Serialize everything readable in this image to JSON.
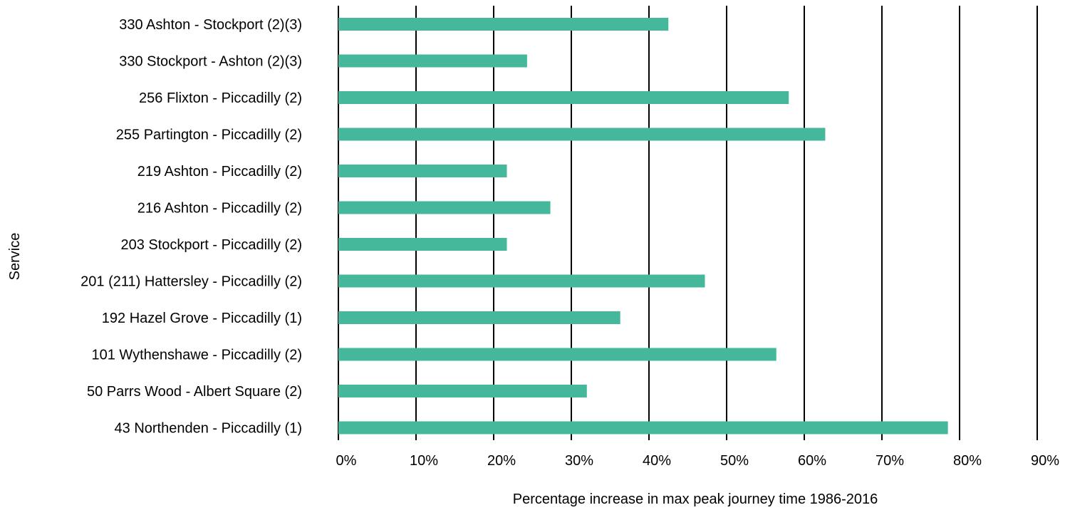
{
  "chart_data": {
    "type": "bar",
    "orientation": "horizontal",
    "xlabel": "Percentage increase in max peak journey time 1986-2016",
    "ylabel": "Service",
    "xlim": [
      0,
      90
    ],
    "x_ticks": [
      0,
      10,
      20,
      30,
      40,
      50,
      60,
      70,
      80,
      90
    ],
    "x_tick_labels": [
      "0%",
      "10%",
      "20%",
      "30%",
      "40%",
      "50%",
      "60%",
      "70%",
      "80%",
      "90%"
    ],
    "vertical_gridlines": true,
    "bar_color": "#45b89c",
    "categories": [
      "330 Ashton - Stockport (2)(3)",
      "330 Stockport - Ashton (2)(3)",
      "256 Flixton - Piccadilly (2)",
      "255 Partington - Piccadilly (2)",
      "219 Ashton - Piccadilly (2)",
      "216 Ashton - Piccadilly (2)",
      "203 Stockport - Piccadilly (2)",
      "201 (211) Hattersley - Piccadilly (2)",
      "192 Hazel Grove - Piccadilly (1)",
      "101 Wythenshawe - Piccadilly (2)",
      "50 Parrs Wood - Albert Square (2)",
      "43 Northenden - Piccadilly (1)"
    ],
    "values": [
      42.5,
      24.3,
      58.0,
      62.7,
      21.7,
      27.3,
      21.7,
      47.2,
      36.3,
      56.4,
      32.0,
      78.5
    ]
  }
}
